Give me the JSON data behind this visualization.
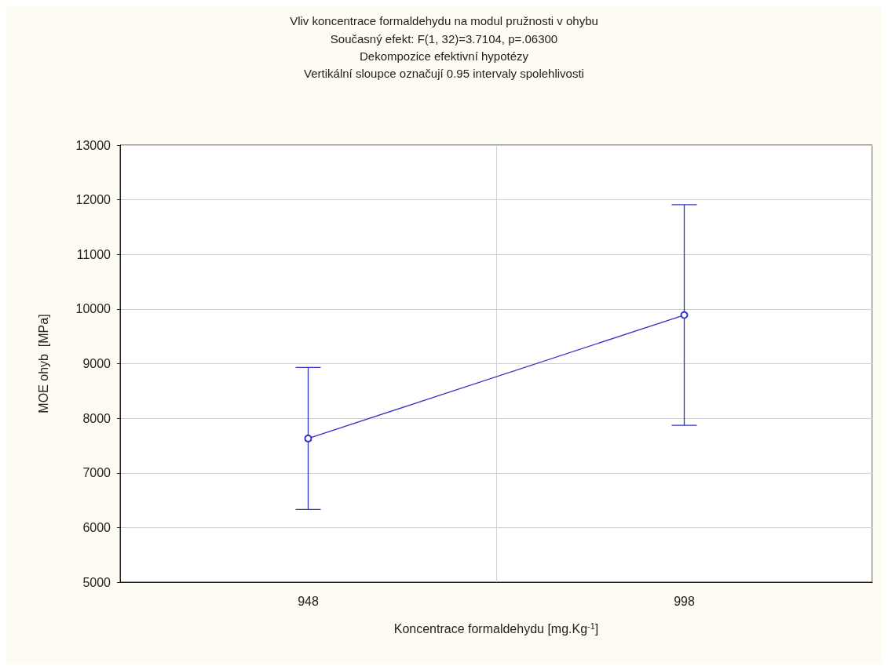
{
  "chart_data": {
    "type": "line",
    "title": "Vliv koncentrace formaldehydu na modul pružnosti v ohybu",
    "subtitle": "Současný efekt: F(1, 32)=3.7104, p=.06300\nDekompozice efektivní hypotézy\nVertikální sloupce označují 0.95 intervaly spolehlivosti",
    "xlabel": "Koncentrace formaldehydu [mg.Kg$^{-1}$]",
    "ylabel": "MOE ohyb  [MPa]",
    "categories": [
      "948",
      "998"
    ],
    "series": [
      {
        "color": "#3333c0",
        "values": [
          7630,
          9890
        ],
        "errors": [
          1300,
          2020
        ]
      }
    ],
    "ylim": [
      5000,
      13000
    ],
    "yticks": [
      5000,
      6000,
      7000,
      8000,
      9000,
      10000,
      11000,
      12000,
      13000
    ],
    "grid": true,
    "marker": "circle",
    "line_style": "solid"
  }
}
